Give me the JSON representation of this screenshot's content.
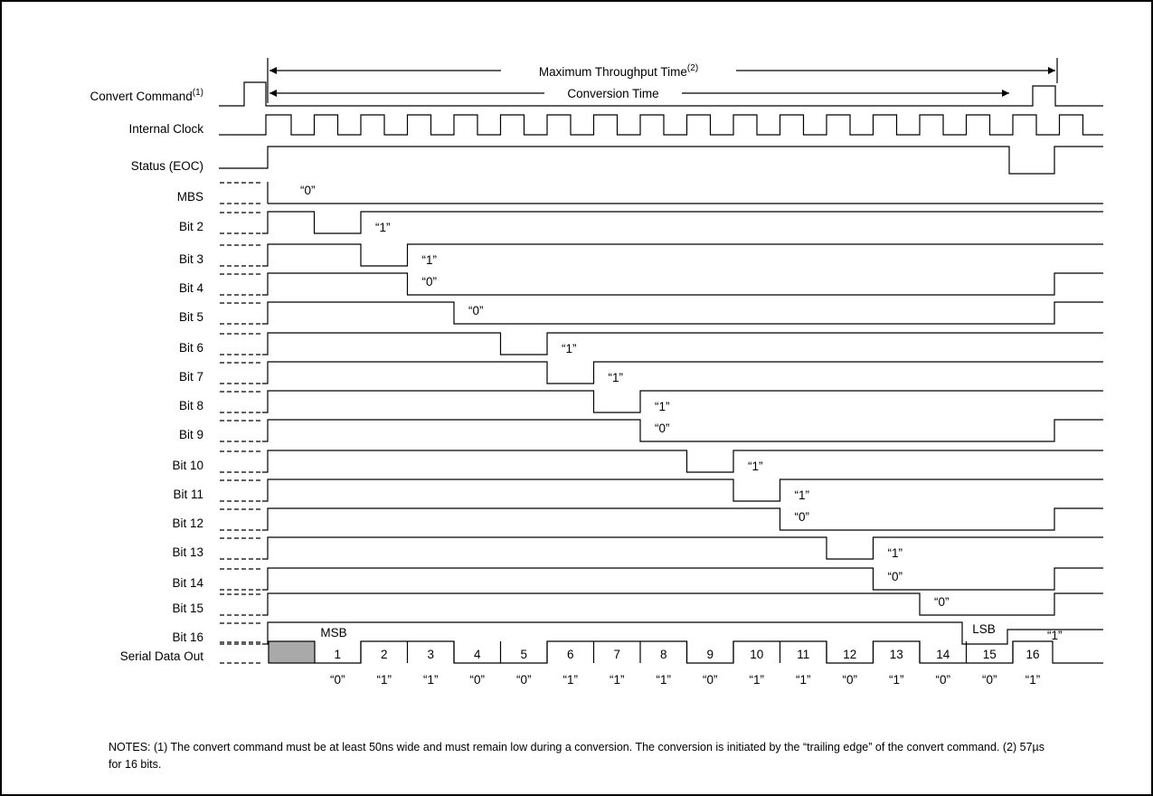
{
  "header": {
    "throughput_label": "Maximum Throughput Time",
    "throughput_note": "(2)",
    "conversion_label": "Conversion Time"
  },
  "signals": {
    "convert_command": {
      "label": "Convert Command",
      "note": "(1)"
    },
    "internal_clock": {
      "label": "Internal Clock"
    },
    "status": {
      "label": "Status (EOC)"
    },
    "serial_data_out": {
      "label": "Serial Data Out"
    }
  },
  "bits": [
    {
      "label": "MBS",
      "value": "“0”"
    },
    {
      "label": "Bit 2",
      "value": "“1”"
    },
    {
      "label": "Bit 3",
      "value": "“1”"
    },
    {
      "label": "Bit 4",
      "value": "“0”"
    },
    {
      "label": "Bit 5",
      "value": "“0”"
    },
    {
      "label": "Bit 6",
      "value": "“1”"
    },
    {
      "label": "Bit 7",
      "value": "“1”"
    },
    {
      "label": "Bit 8",
      "value": "“1”"
    },
    {
      "label": "Bit 9",
      "value": "“0”"
    },
    {
      "label": "Bit 10",
      "value": "“1”"
    },
    {
      "label": "Bit 11",
      "value": "“1”"
    },
    {
      "label": "Bit 12",
      "value": "“0”"
    },
    {
      "label": "Bit 13",
      "value": "“1”"
    },
    {
      "label": "Bit 14",
      "value": "“0”"
    },
    {
      "label": "Bit 15",
      "value": "“0”"
    },
    {
      "label": "Bit 16",
      "value": "“1”"
    }
  ],
  "serial": {
    "msb_label": "MSB",
    "lsb_label": "LSB",
    "slot_numbers": [
      "1",
      "2",
      "3",
      "4",
      "5",
      "6",
      "7",
      "8",
      "9",
      "10",
      "11",
      "12",
      "13",
      "14",
      "15",
      "16"
    ],
    "slot_values": [
      "“0”",
      "“1”",
      "“1”",
      "“0”",
      "“0”",
      "“1”",
      "“1”",
      "“1”",
      "“0”",
      "“1”",
      "“1”",
      "“0”",
      "“1”",
      "“0”",
      "“0”",
      "“1”"
    ]
  },
  "notes": "NOTES: (1) The convert command must be at least 50ns wide and must remain low during a conversion. The conversion is initiated by the “trailing edge” of the convert command. (2) 57µs for 16 bits."
}
